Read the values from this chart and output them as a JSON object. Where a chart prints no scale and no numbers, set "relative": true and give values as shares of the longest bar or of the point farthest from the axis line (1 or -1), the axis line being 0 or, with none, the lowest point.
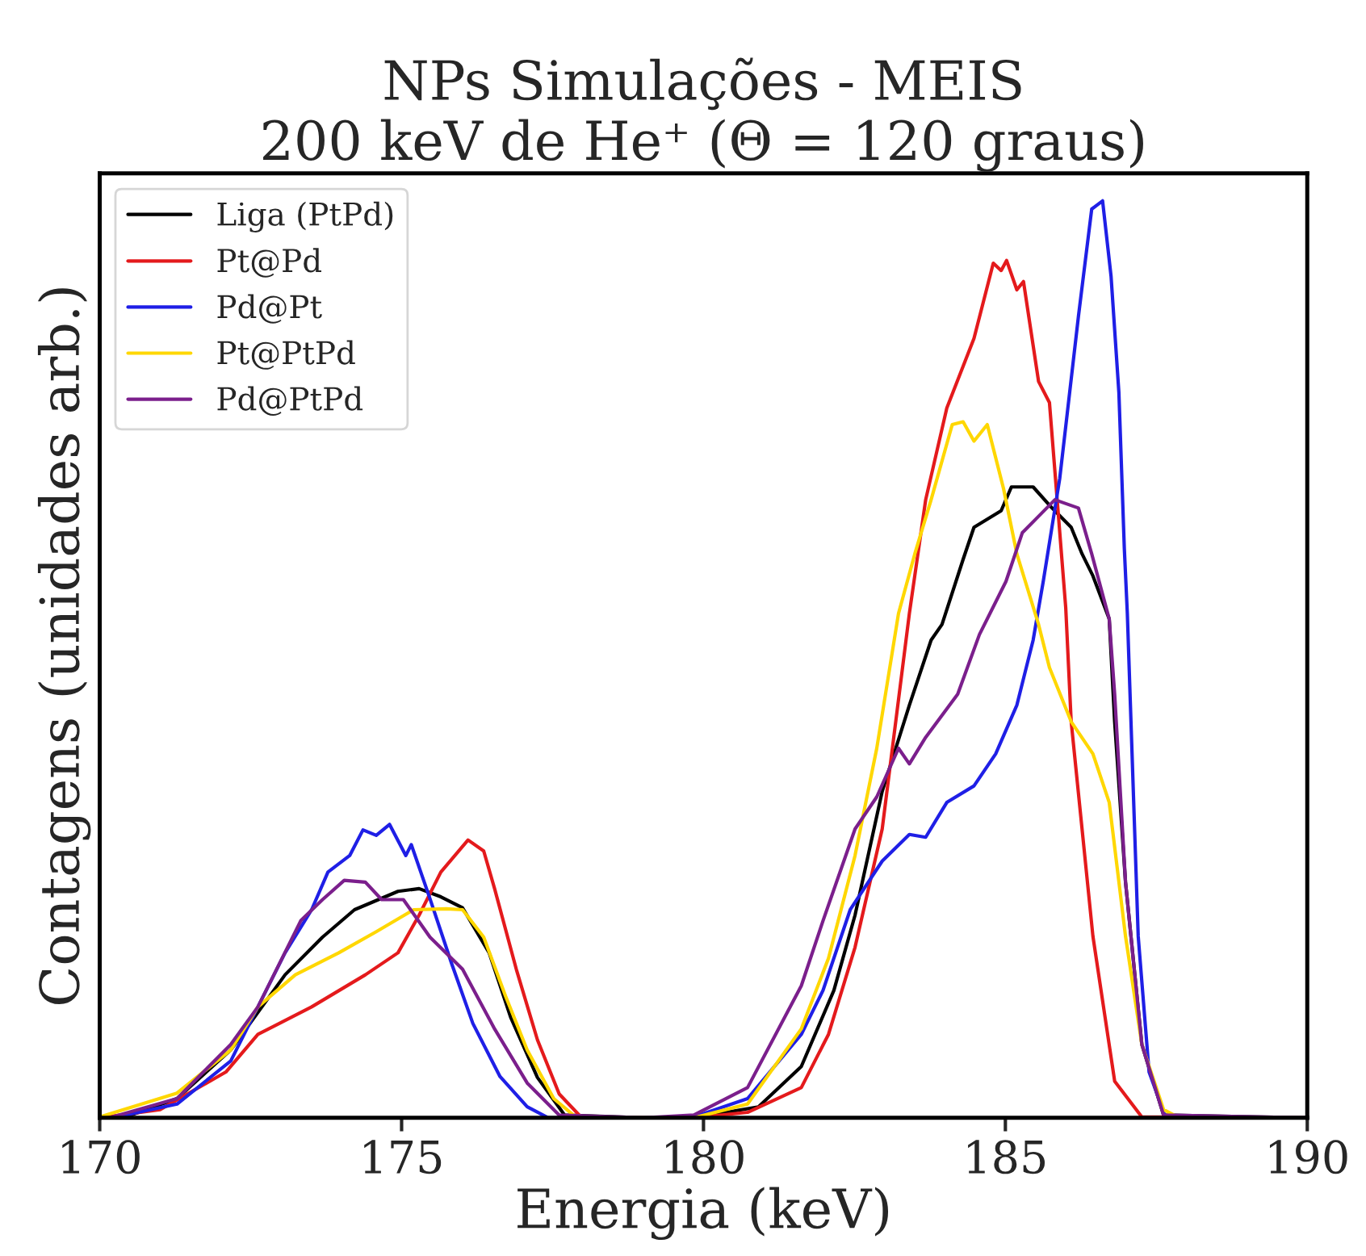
{
  "chart_data": {
    "type": "line",
    "title": "NPs Simulações - MEIS\n200 keV de He⁺ (Θ = 120 graus)",
    "xlabel": "Energia (keV)",
    "ylabel": "Contagens (unidades arb.)",
    "relative": true,
    "xlim": [
      170,
      190
    ],
    "xticks": [
      170,
      175,
      180,
      185,
      190
    ],
    "grid": false,
    "legend": "top left",
    "line_style": "solid",
    "marker": "none",
    "series": [
      {
        "name": "Liga (PtPd)",
        "color": "#000000",
        "x": [
          170,
          170.39,
          171.28,
          172.17,
          173.07,
          173.69,
          174.22,
          174.94,
          175.29,
          175.65,
          176.01,
          176.45,
          176.81,
          177.25,
          177.7,
          179,
          179.84,
          180.91,
          181.62,
          182.16,
          182.51,
          182.96,
          183.41,
          183.77,
          183.95,
          184.3,
          184.48,
          184.93,
          185.1,
          185.46,
          185.73,
          186.09,
          186.27,
          186.45,
          186.72,
          186.81,
          186.99,
          187.26,
          187.62,
          190
        ],
        "values": [
          0,
          0,
          0.021,
          0.074,
          0.156,
          0.197,
          0.227,
          0.247,
          0.25,
          0.241,
          0.229,
          0.18,
          0.109,
          0.044,
          0.003,
          0,
          0,
          0.012,
          0.056,
          0.139,
          0.221,
          0.356,
          0.45,
          0.521,
          0.538,
          0.609,
          0.644,
          0.662,
          0.688,
          0.688,
          0.668,
          0.644,
          0.615,
          0.591,
          0.544,
          0.432,
          0.257,
          0.08,
          0.003,
          0
        ]
      },
      {
        "name": "Pt@Pd",
        "color": "#e41a1c",
        "x": [
          170,
          171.0,
          172.09,
          172.62,
          173.51,
          174.4,
          174.94,
          175.29,
          175.65,
          176.1,
          176.36,
          176.54,
          176.9,
          177.25,
          177.61,
          177.97,
          179,
          179.84,
          180.73,
          181.62,
          182.07,
          182.51,
          182.96,
          183.41,
          183.68,
          184.03,
          184.48,
          184.8,
          184.93,
          185.02,
          185.19,
          185.3,
          185.55,
          185.73,
          186.0,
          186.09,
          186.45,
          186.81,
          187.26,
          190
        ],
        "values": [
          0,
          0.009,
          0.05,
          0.091,
          0.121,
          0.156,
          0.18,
          0.221,
          0.268,
          0.303,
          0.291,
          0.25,
          0.162,
          0.085,
          0.026,
          0.001,
          0,
          0,
          0.006,
          0.033,
          0.091,
          0.186,
          0.315,
          0.55,
          0.674,
          0.774,
          0.85,
          0.932,
          0.924,
          0.935,
          0.903,
          0.912,
          0.803,
          0.78,
          0.556,
          0.432,
          0.198,
          0.04,
          0.001,
          0
        ]
      },
      {
        "name": "Pd@Pt",
        "color": "#1f1fe6",
        "x": [
          170,
          170.21,
          171.28,
          172.17,
          172.62,
          173.07,
          173.51,
          173.78,
          174.14,
          174.36,
          174.58,
          174.8,
          175.07,
          175.16,
          175.47,
          175.83,
          176.18,
          176.63,
          177.08,
          177.43,
          179,
          179.84,
          180.73,
          181.62,
          181.98,
          182.43,
          182.96,
          183.41,
          183.68,
          184.03,
          184.48,
          184.84,
          185.19,
          185.46,
          185.63,
          185.9,
          186.21,
          186.43,
          186.61,
          186.75,
          186.88,
          186.97,
          187.02,
          187.2,
          187.38,
          187.65,
          190
        ],
        "values": [
          0,
          0,
          0.015,
          0.062,
          0.121,
          0.18,
          0.227,
          0.268,
          0.286,
          0.314,
          0.308,
          0.32,
          0.286,
          0.298,
          0.239,
          0.168,
          0.103,
          0.045,
          0.012,
          0,
          0,
          0.001,
          0.021,
          0.091,
          0.139,
          0.227,
          0.28,
          0.309,
          0.306,
          0.344,
          0.362,
          0.397,
          0.45,
          0.521,
          0.586,
          0.697,
          0.874,
          0.991,
          1.0,
          0.918,
          0.791,
          0.621,
          0.55,
          0.198,
          0.05,
          0.001,
          0
        ]
      },
      {
        "name": "Pt@PtPd",
        "color": "#ffd700",
        "x": [
          170,
          171.28,
          172.17,
          172.62,
          173.24,
          173.96,
          174.58,
          175.2,
          175.74,
          176.01,
          176.36,
          176.72,
          177.08,
          177.52,
          177.88,
          179,
          179.84,
          180.73,
          181.62,
          182.07,
          182.51,
          182.87,
          183.23,
          183.5,
          183.77,
          184.12,
          184.3,
          184.48,
          184.7,
          184.97,
          185.19,
          185.55,
          185.73,
          186.09,
          186.45,
          186.72,
          186.99,
          187.26,
          187.62,
          187.88,
          190
        ],
        "values": [
          0.001,
          0.027,
          0.074,
          0.121,
          0.156,
          0.18,
          0.203,
          0.227,
          0.228,
          0.227,
          0.197,
          0.133,
          0.074,
          0.021,
          0.001,
          0,
          0,
          0.015,
          0.097,
          0.174,
          0.286,
          0.403,
          0.55,
          0.615,
          0.674,
          0.756,
          0.759,
          0.738,
          0.756,
          0.686,
          0.615,
          0.538,
          0.491,
          0.432,
          0.397,
          0.344,
          0.198,
          0.08,
          0.009,
          0,
          0
        ]
      },
      {
        "name": "Pd@PtPd",
        "color": "#7b1f8c",
        "x": [
          170.21,
          171.28,
          172.17,
          172.62,
          173.33,
          173.69,
          174.05,
          174.4,
          174.67,
          175.03,
          175.47,
          176.01,
          176.54,
          177.08,
          177.61,
          179,
          179.84,
          180.73,
          181.62,
          181.98,
          182.51,
          182.87,
          183.23,
          183.41,
          183.68,
          184.21,
          184.57,
          185.01,
          185.28,
          185.55,
          185.82,
          186.21,
          186.43,
          186.72,
          186.81,
          186.99,
          187.26,
          187.62,
          190
        ],
        "values": [
          0.001,
          0.021,
          0.08,
          0.121,
          0.215,
          0.238,
          0.259,
          0.257,
          0.238,
          0.238,
          0.197,
          0.162,
          0.097,
          0.038,
          0.003,
          0,
          0.003,
          0.033,
          0.144,
          0.215,
          0.315,
          0.35,
          0.403,
          0.386,
          0.415,
          0.462,
          0.527,
          0.585,
          0.638,
          0.656,
          0.674,
          0.665,
          0.615,
          0.544,
          0.462,
          0.257,
          0.08,
          0.003,
          0
        ]
      }
    ]
  }
}
